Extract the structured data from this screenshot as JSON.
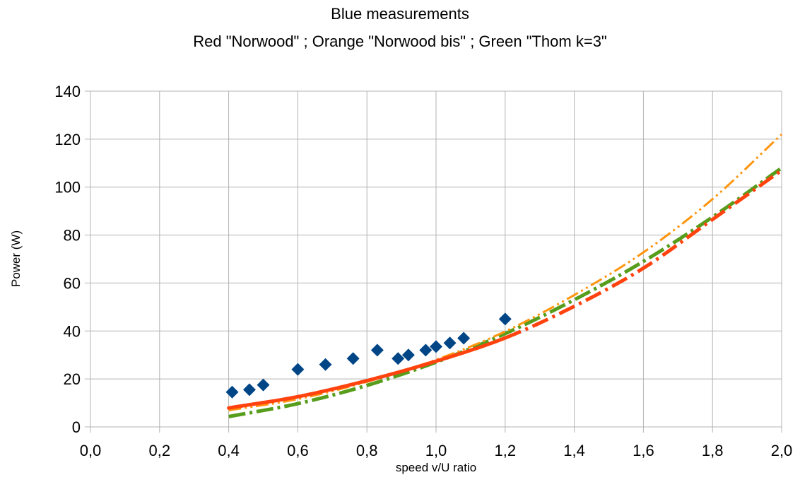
{
  "chart_data": {
    "type": "scatter",
    "title": "Blue measurements",
    "subtitle": "Red \"Norwood\"  ;  Orange \"Norwood bis\"  ;  Green \"Thom k=3\"",
    "xlabel": "speed v/U ratio",
    "ylabel": "Power (W)",
    "xlim": [
      0,
      2.0
    ],
    "ylim": [
      0,
      140
    ],
    "xticks": [
      0,
      0.2,
      0.4,
      0.6,
      0.8,
      1.0,
      1.2,
      1.4,
      1.6,
      1.8,
      2.0
    ],
    "xtick_labels": [
      "0,0",
      "0,2",
      "0,4",
      "0,6",
      "0,8",
      "1,0",
      "1,2",
      "1,4",
      "1,6",
      "1,8",
      "2,0"
    ],
    "yticks": [
      0,
      20,
      40,
      60,
      80,
      100,
      120,
      140
    ],
    "ytick_labels": [
      "0",
      "20",
      "40",
      "60",
      "80",
      "100",
      "120",
      "140"
    ],
    "grid": true,
    "series": [
      {
        "color": "#004586",
        "marker": "diamond",
        "x": [
          0.41,
          0.46,
          0.5,
          0.6,
          0.68,
          0.76,
          0.83,
          0.89,
          0.92,
          0.97,
          1.0,
          1.04,
          1.08,
          1.2
        ],
        "y": [
          14.5,
          15.5,
          17.5,
          24,
          26,
          28.5,
          32,
          28.5,
          30,
          32,
          33.5,
          35,
          37,
          45
        ]
      },
      {
        "color": "#ff420e",
        "line": "solid-then-dashdot",
        "x": [
          0.4,
          0.6,
          0.8,
          1.0,
          1.2,
          1.4,
          1.6,
          1.8,
          2.0
        ],
        "y": [
          7.9,
          12.6,
          19.3,
          27.4,
          37.1,
          50.3,
          66.2,
          86.5,
          107
        ]
      },
      {
        "color": "#ff950e",
        "line": "dashdotdot",
        "x": [
          0.4,
          0.6,
          0.8,
          1.0,
          1.2,
          1.4,
          1.6,
          1.8,
          2.0
        ],
        "y": [
          6.9,
          11.6,
          18.8,
          28,
          39.8,
          55,
          72.8,
          95,
          122
        ]
      },
      {
        "color": "#579d1c",
        "line": "dashdot",
        "x": [
          0.4,
          0.6,
          0.8,
          1.0,
          1.2,
          1.4,
          1.6,
          1.8,
          2.0
        ],
        "y": [
          4.3,
          9.7,
          17.3,
          27,
          38.9,
          53,
          69,
          87.5,
          108
        ]
      }
    ]
  }
}
